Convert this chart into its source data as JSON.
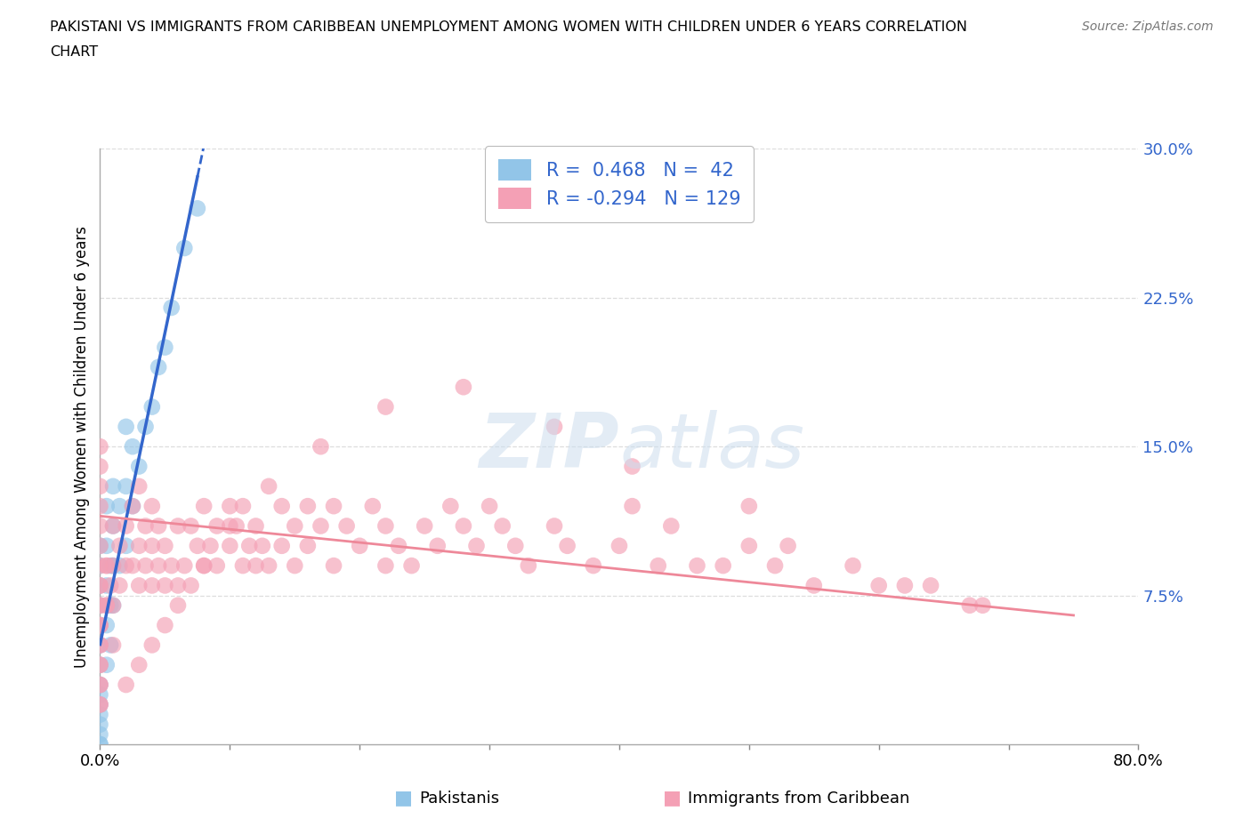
{
  "title_line1": "PAKISTANI VS IMMIGRANTS FROM CARIBBEAN UNEMPLOYMENT AMONG WOMEN WITH CHILDREN UNDER 6 YEARS CORRELATION",
  "title_line2": "CHART",
  "source": "Source: ZipAtlas.com",
  "ylabel": "Unemployment Among Women with Children Under 6 years",
  "xlim": [
    0.0,
    0.8
  ],
  "ylim": [
    0.0,
    0.3
  ],
  "xtick_positions": [
    0.0,
    0.1,
    0.2,
    0.3,
    0.4,
    0.5,
    0.6,
    0.7,
    0.8
  ],
  "xticklabels": [
    "0.0%",
    "",
    "",
    "",
    "",
    "",
    "",
    "",
    "80.0%"
  ],
  "yticks_right": [
    0.0,
    0.075,
    0.15,
    0.225,
    0.3
  ],
  "ytick_labels_right": [
    "",
    "7.5%",
    "15.0%",
    "22.5%",
    "30.0%"
  ],
  "pakistani_color": "#92C5E8",
  "caribbean_color": "#F4A0B5",
  "trend_blue": "#3366CC",
  "trend_pink": "#EE8899",
  "pakistani_R": 0.468,
  "pakistani_N": 42,
  "caribbean_R": -0.294,
  "caribbean_N": 129,
  "legend_text_color": "#3366CC",
  "background_color": "#FFFFFF",
  "grid_color": "#DDDDDD",
  "pak_x": [
    0.0,
    0.0,
    0.0,
    0.0,
    0.0,
    0.0,
    0.0,
    0.0,
    0.0,
    0.0,
    0.0,
    0.0,
    0.0,
    0.0,
    0.0,
    0.005,
    0.005,
    0.005,
    0.005,
    0.005,
    0.008,
    0.008,
    0.008,
    0.01,
    0.01,
    0.01,
    0.01,
    0.015,
    0.015,
    0.02,
    0.02,
    0.02,
    0.025,
    0.025,
    0.03,
    0.035,
    0.04,
    0.045,
    0.05,
    0.055,
    0.065,
    0.075
  ],
  "pak_y": [
    0.0,
    0.0,
    0.005,
    0.01,
    0.015,
    0.02,
    0.025,
    0.03,
    0.04,
    0.05,
    0.06,
    0.07,
    0.08,
    0.09,
    0.1,
    0.04,
    0.06,
    0.08,
    0.1,
    0.12,
    0.05,
    0.07,
    0.09,
    0.07,
    0.09,
    0.11,
    0.13,
    0.09,
    0.12,
    0.1,
    0.13,
    0.16,
    0.12,
    0.15,
    0.14,
    0.16,
    0.17,
    0.19,
    0.2,
    0.22,
    0.25,
    0.27
  ],
  "car_x": [
    0.0,
    0.0,
    0.0,
    0.0,
    0.005,
    0.005,
    0.008,
    0.01,
    0.01,
    0.01,
    0.015,
    0.015,
    0.02,
    0.02,
    0.025,
    0.025,
    0.03,
    0.03,
    0.03,
    0.035,
    0.035,
    0.04,
    0.04,
    0.04,
    0.045,
    0.045,
    0.05,
    0.05,
    0.055,
    0.06,
    0.06,
    0.065,
    0.07,
    0.07,
    0.075,
    0.08,
    0.08,
    0.085,
    0.09,
    0.09,
    0.1,
    0.1,
    0.105,
    0.11,
    0.11,
    0.115,
    0.12,
    0.12,
    0.125,
    0.13,
    0.14,
    0.14,
    0.15,
    0.15,
    0.16,
    0.16,
    0.17,
    0.18,
    0.18,
    0.19,
    0.2,
    0.21,
    0.22,
    0.22,
    0.23,
    0.24,
    0.25,
    0.26,
    0.27,
    0.28,
    0.29,
    0.3,
    0.31,
    0.32,
    0.33,
    0.35,
    0.36,
    0.38,
    0.4,
    0.41,
    0.43,
    0.44,
    0.46,
    0.48,
    0.5,
    0.52,
    0.53,
    0.55,
    0.58,
    0.6,
    0.62,
    0.64,
    0.67,
    0.68,
    0.5,
    0.41,
    0.35,
    0.28,
    0.22,
    0.17,
    0.13,
    0.1,
    0.08,
    0.06,
    0.05,
    0.04,
    0.03,
    0.02,
    0.01,
    0.005,
    0.005,
    0.0,
    0.0,
    0.0,
    0.0,
    0.0,
    0.0,
    0.0,
    0.0,
    0.0,
    0.0,
    0.0,
    0.0,
    0.0,
    0.0,
    0.0,
    0.0,
    0.0,
    0.0
  ],
  "car_y": [
    0.05,
    0.06,
    0.07,
    0.08,
    0.07,
    0.09,
    0.08,
    0.07,
    0.09,
    0.11,
    0.08,
    0.1,
    0.09,
    0.11,
    0.09,
    0.12,
    0.08,
    0.1,
    0.13,
    0.09,
    0.11,
    0.08,
    0.1,
    0.12,
    0.09,
    0.11,
    0.08,
    0.1,
    0.09,
    0.08,
    0.11,
    0.09,
    0.08,
    0.11,
    0.1,
    0.09,
    0.12,
    0.1,
    0.09,
    0.11,
    0.1,
    0.12,
    0.11,
    0.09,
    0.12,
    0.1,
    0.09,
    0.11,
    0.1,
    0.09,
    0.1,
    0.12,
    0.09,
    0.11,
    0.1,
    0.12,
    0.11,
    0.09,
    0.12,
    0.11,
    0.1,
    0.12,
    0.09,
    0.11,
    0.1,
    0.09,
    0.11,
    0.1,
    0.12,
    0.11,
    0.1,
    0.12,
    0.11,
    0.1,
    0.09,
    0.11,
    0.1,
    0.09,
    0.1,
    0.12,
    0.09,
    0.11,
    0.09,
    0.09,
    0.1,
    0.09,
    0.1,
    0.08,
    0.09,
    0.08,
    0.08,
    0.08,
    0.07,
    0.07,
    0.12,
    0.14,
    0.16,
    0.18,
    0.17,
    0.15,
    0.13,
    0.11,
    0.09,
    0.07,
    0.06,
    0.05,
    0.04,
    0.03,
    0.05,
    0.07,
    0.09,
    0.13,
    0.11,
    0.09,
    0.07,
    0.06,
    0.05,
    0.04,
    0.03,
    0.02,
    0.14,
    0.12,
    0.1,
    0.08,
    0.06,
    0.04,
    0.02,
    0.15,
    0.03
  ]
}
